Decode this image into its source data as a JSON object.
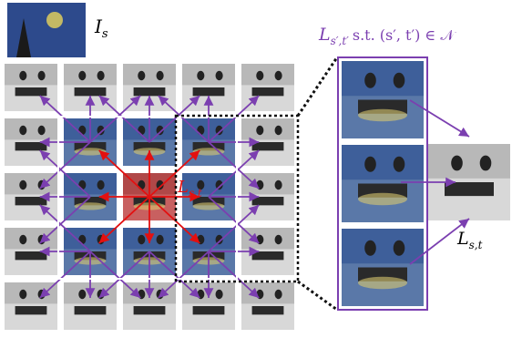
{
  "style_label": {
    "main": "I",
    "sub": "s"
  },
  "neighbor_label": {
    "main": "L",
    "sub": "s′,t′",
    "condition": "s.t. (s′, t′) ∈ 𝒩"
  },
  "center_label": {
    "main": "L",
    "sub": "s,t"
  },
  "output_label": {
    "main": "L",
    "sub": "s,t"
  }
}
